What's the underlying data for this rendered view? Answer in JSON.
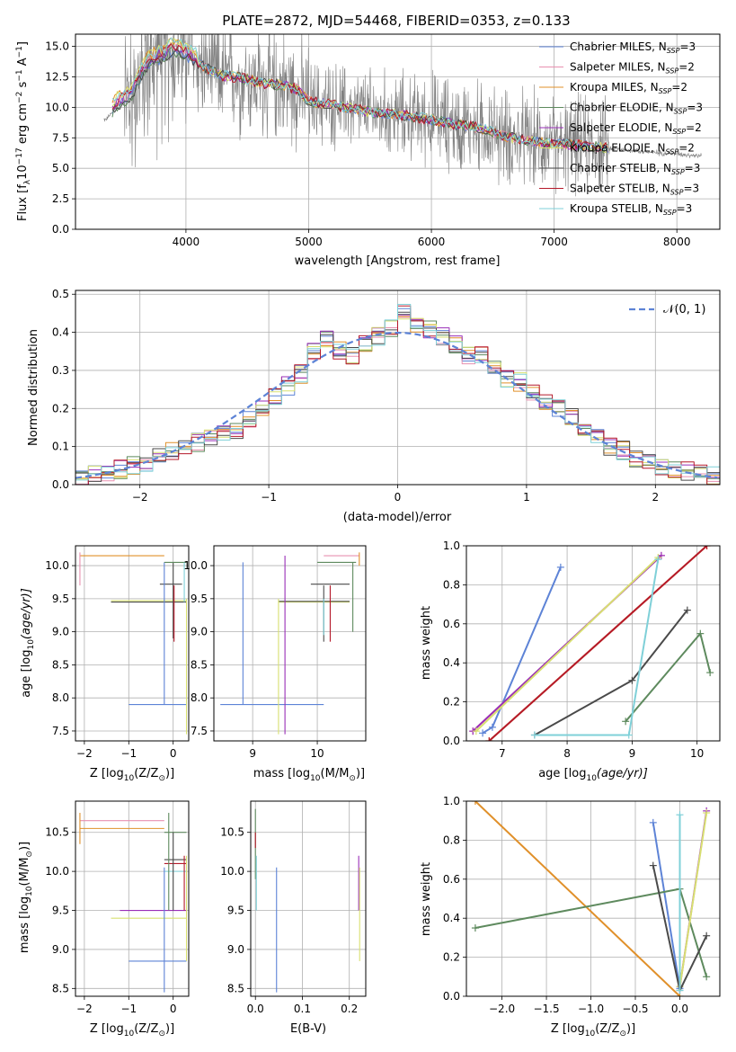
{
  "figure": {
    "title": "PLATE=2872, MJD=54468, FIBERID=0353, z=0.133"
  },
  "colors": {
    "Chabrier MILES": "#5d83d6",
    "Salpeter MILES": "#e890b0",
    "Kroupa MILES": "#e0902a",
    "Chabrier ELODIE": "#5e8a5e",
    "Salpeter ELODIE": "#9a2fb8",
    "Kroupa ELODIE": "#d8e070",
    "Chabrier STELIB": "#4a4a4a",
    "Salpeter STELIB": "#b5192a",
    "Kroupa STELIB": "#7fd0d8",
    "data": "#808080",
    "gauss": "#5d83d6"
  },
  "legend_spectrum": [
    {
      "key": "Chabrier MILES",
      "pre": "Chabrier MILES, N",
      "sub": "SSP",
      "post": "=3"
    },
    {
      "key": "Salpeter MILES",
      "pre": "Salpeter MILES, N",
      "sub": "SSP",
      "post": "=2"
    },
    {
      "key": "Kroupa MILES",
      "pre": "Kroupa MILES, N",
      "sub": "SSP",
      "post": "=2"
    },
    {
      "key": "Chabrier ELODIE",
      "pre": "Chabrier ELODIE, N",
      "sub": "SSP",
      "post": "=3"
    },
    {
      "key": "Salpeter ELODIE",
      "pre": "Salpeter ELODIE, N",
      "sub": "SSP",
      "post": "=2"
    },
    {
      "key": "Kroupa ELODIE",
      "pre": "Kroupa ELODIE, N",
      "sub": "SSP",
      "post": "=2"
    },
    {
      "key": "Chabrier STELIB",
      "pre": "Chabrier STELIB, N",
      "sub": "SSP",
      "post": "=3"
    },
    {
      "key": "Salpeter STELIB",
      "pre": "Salpeter STELIB, N",
      "sub": "SSP",
      "post": "=3"
    },
    {
      "key": "Kroupa STELIB",
      "pre": "Kroupa STELIB, N",
      "sub": "SSP",
      "post": "=3"
    }
  ],
  "chart_data": [
    {
      "id": "spectrum",
      "type": "line",
      "xlabel": "wavelength [Angstrom, rest frame]",
      "ylabel_parts": {
        "pre": "Flux [f",
        "sub": "λ",
        "mid": "10",
        "sup1": "−17",
        "post": " erg cm",
        "sup2": "−2",
        "post2": " s",
        "sup3": "−1",
        "post3": " A",
        "sup4": "−1",
        "end": "]"
      },
      "xlim": [
        3100,
        8350
      ],
      "ylim": [
        0,
        16
      ],
      "xticks": [
        4000,
        5000,
        6000,
        7000,
        8000
      ],
      "yticks": [
        0.0,
        2.5,
        5.0,
        7.5,
        10.0,
        12.5,
        15.0
      ],
      "ytick_labels": [
        "0.0",
        "2.5",
        "5.0",
        "7.5",
        "10.0",
        "12.5",
        "15.0"
      ],
      "continuum": {
        "x": [
          3350,
          3450,
          3550,
          3650,
          3700,
          3800,
          3900,
          4000,
          4100,
          4200,
          4300,
          4400,
          4500,
          4600,
          4700,
          4800,
          4900,
          5000,
          5200,
          5400,
          5600,
          5800,
          6000,
          6200,
          6400,
          6600,
          6800,
          7000,
          7200,
          7400,
          7600,
          7800,
          8000,
          8200
        ],
        "y": [
          9.0,
          10.2,
          10.8,
          12.8,
          13.5,
          14.0,
          14.6,
          14.2,
          13.6,
          13.0,
          12.6,
          12.5,
          12.3,
          12.0,
          11.9,
          11.8,
          11.5,
          10.5,
          10.2,
          9.8,
          9.5,
          9.3,
          9.0,
          8.6,
          8.3,
          7.6,
          7.3,
          7.0,
          6.9,
          6.7,
          6.5,
          6.3,
          6.2,
          6.0
        ]
      }
    },
    {
      "id": "residuals",
      "type": "step",
      "xlabel": "(data-model)/error",
      "ylabel": "Normed distribution",
      "xlim": [
        -2.5,
        2.5
      ],
      "ylim": [
        0,
        0.51
      ],
      "xticks": [
        -2,
        -1,
        0,
        1,
        2
      ],
      "xtick_labels": [
        "−2",
        "−1",
        "0",
        "1",
        "2"
      ],
      "yticks": [
        0.0,
        0.1,
        0.2,
        0.3,
        0.4,
        0.5
      ],
      "ytick_labels": [
        "0.0",
        "0.1",
        "0.2",
        "0.3",
        "0.4",
        "0.5"
      ],
      "legend": "𝒩(0, 1)",
      "bin_width": 0.1,
      "bin_start": -2.5,
      "base_values": [
        0.02,
        0.025,
        0.03,
        0.04,
        0.05,
        0.06,
        0.07,
        0.09,
        0.1,
        0.11,
        0.12,
        0.13,
        0.14,
        0.17,
        0.2,
        0.23,
        0.26,
        0.29,
        0.35,
        0.38,
        0.35,
        0.34,
        0.37,
        0.39,
        0.41,
        0.45,
        0.42,
        0.41,
        0.39,
        0.37,
        0.34,
        0.34,
        0.31,
        0.28,
        0.27,
        0.24,
        0.22,
        0.2,
        0.18,
        0.15,
        0.13,
        0.1,
        0.09,
        0.07,
        0.06,
        0.05,
        0.04,
        0.035,
        0.03,
        0.025
      ]
    },
    {
      "id": "age_vs_Z",
      "type": "errorbar",
      "xlabel_parts": {
        "pre": "Z [log",
        "sub": "10",
        "post": "(Z/Z",
        "sub2": "⊙",
        "end": ")]"
      },
      "ylabel_parts": {
        "pre": "age  [log",
        "sub": "10",
        "post": "(age/yr)]"
      },
      "xlim": [
        -2.2,
        0.35
      ],
      "ylim": [
        7.35,
        10.3
      ],
      "xticks": [
        -2,
        -1,
        0
      ],
      "xtick_labels": [
        "−2",
        "−1",
        "0"
      ],
      "yticks": [
        7.5,
        8.0,
        8.5,
        9.0,
        9.5,
        10.0
      ],
      "ytick_labels": [
        "7.5",
        "8.0",
        "8.5",
        "9.0",
        "9.5",
        "10.0"
      ]
    },
    {
      "id": "age_vs_mass",
      "type": "errorbar",
      "xlabel_parts": {
        "pre": "mass [log",
        "sub": "10",
        "post": "(M/M",
        "sub2": "⊙",
        "end": ")]"
      },
      "xlim": [
        8.4,
        10.75
      ],
      "ylim": [
        7.35,
        10.3
      ],
      "xticks": [
        9,
        10
      ],
      "xtick_labels": [
        "9",
        "10"
      ],
      "yticks": [
        7.5,
        8.0,
        8.5,
        9.0,
        9.5,
        10.0
      ],
      "ytick_labels": [
        "7.5",
        "8.0",
        "8.5",
        "9.0",
        "9.5",
        "10.0"
      ]
    },
    {
      "id": "weight_vs_age",
      "type": "line",
      "xlabel_parts": {
        "pre": "age  [log",
        "sub": "10",
        "post": "(age/yr)]"
      },
      "ylabel": "mass weight",
      "xlim": [
        6.45,
        10.35
      ],
      "ylim": [
        0,
        1.0
      ],
      "xticks": [
        7,
        8,
        9,
        10
      ],
      "xtick_labels": [
        "7",
        "8",
        "9",
        "10"
      ],
      "yticks": [
        0.0,
        0.2,
        0.4,
        0.6,
        0.8,
        1.0
      ],
      "ytick_labels": [
        "0.0",
        "0.2",
        "0.4",
        "0.6",
        "0.8",
        "1.0"
      ],
      "series": [
        {
          "key": "Chabrier MILES",
          "x": [
            7.9,
            6.85,
            6.7
          ],
          "y": [
            0.89,
            0.07,
            0.04
          ]
        },
        {
          "key": "Salpeter MILES",
          "x": [
            6.55,
            9.45
          ],
          "y": [
            0.05,
            0.95
          ]
        },
        {
          "key": "Kroupa MILES",
          "x": [
            6.8,
            10.15
          ],
          "y": [
            0.0,
            1.0
          ]
        },
        {
          "key": "Chabrier ELODIE",
          "x": [
            8.9,
            10.05,
            10.2
          ],
          "y": [
            0.1,
            0.55,
            0.35
          ]
        },
        {
          "key": "Salpeter ELODIE",
          "x": [
            6.55,
            9.45
          ],
          "y": [
            0.05,
            0.95
          ]
        },
        {
          "key": "Kroupa ELODIE",
          "x": [
            6.6,
            9.4
          ],
          "y": [
            0.05,
            0.94
          ]
        },
        {
          "key": "Chabrier STELIB",
          "x": [
            7.5,
            9.0,
            9.85
          ],
          "y": [
            0.03,
            0.31,
            0.67
          ]
        },
        {
          "key": "Salpeter STELIB",
          "x": [
            6.8,
            10.15
          ],
          "y": [
            0.0,
            1.0
          ]
        },
        {
          "key": "Kroupa STELIB",
          "x": [
            7.5,
            8.95,
            9.4
          ],
          "y": [
            0.03,
            0.03,
            0.93
          ]
        }
      ]
    },
    {
      "id": "mass_vs_Z",
      "type": "errorbar",
      "xlabel_parts": {
        "pre": "Z [log",
        "sub": "10",
        "post": "(Z/Z",
        "sub2": "⊙",
        "end": ")]"
      },
      "ylabel_parts": {
        "pre": "mass [log",
        "sub": "10",
        "post": "(M/M",
        "sub2": "⊙",
        "end": ")]"
      },
      "xlim": [
        -2.2,
        0.35
      ],
      "ylim": [
        8.4,
        10.9
      ],
      "xticks": [
        -2,
        -1,
        0
      ],
      "xtick_labels": [
        "−2",
        "−1",
        "0"
      ],
      "yticks": [
        8.5,
        9.0,
        9.5,
        10.0,
        10.5
      ],
      "ytick_labels": [
        "8.5",
        "9.0",
        "9.5",
        "10.0",
        "10.5"
      ]
    },
    {
      "id": "mass_vs_EBV",
      "type": "errorbar",
      "xlabel": "E(B-V)",
      "xlim": [
        -0.01,
        0.235
      ],
      "ylim": [
        8.4,
        10.9
      ],
      "xticks": [
        0.0,
        0.1,
        0.2
      ],
      "xtick_labels": [
        "0.0",
        "0.1",
        "0.2"
      ],
      "yticks": [
        8.5,
        9.0,
        9.5,
        10.0,
        10.5
      ],
      "ytick_labels": [
        "8.5",
        "9.0",
        "9.5",
        "10.0",
        "10.5"
      ]
    },
    {
      "id": "weight_vs_Z",
      "type": "line",
      "xlabel_parts": {
        "pre": "Z [log",
        "sub": "10",
        "post": "(Z/Z",
        "sub2": "⊙",
        "end": ")]"
      },
      "ylabel": "mass weight",
      "xlim": [
        -2.4,
        0.45
      ],
      "ylim": [
        0,
        1.0
      ],
      "xticks": [
        -2.0,
        -1.5,
        -1.0,
        -0.5,
        0.0
      ],
      "xtick_labels": [
        "−2.0",
        "−1.5",
        "−1.0",
        "−0.5",
        "0.0"
      ],
      "yticks": [
        0.0,
        0.2,
        0.4,
        0.6,
        0.8,
        1.0
      ],
      "ytick_labels": [
        "0.0",
        "0.2",
        "0.4",
        "0.6",
        "0.8",
        "1.0"
      ],
      "series": [
        {
          "key": "Chabrier MILES",
          "x": [
            -0.3,
            0.0
          ],
          "y": [
            0.89,
            0.04
          ]
        },
        {
          "key": "Kroupa MILES",
          "x": [
            -2.3,
            0.0
          ],
          "y": [
            1.0,
            0.0
          ]
        },
        {
          "key": "Chabrier ELODIE",
          "x": [
            -2.3,
            0.0,
            0.3
          ],
          "y": [
            0.35,
            0.55,
            0.1
          ]
        },
        {
          "key": "Salpeter ELODIE",
          "x": [
            0.0,
            0.3
          ],
          "y": [
            0.05,
            0.95
          ]
        },
        {
          "key": "Kroupa ELODIE",
          "x": [
            0.0,
            0.3
          ],
          "y": [
            0.05,
            0.94
          ]
        },
        {
          "key": "Chabrier STELIB",
          "x": [
            -0.3,
            0.0,
            0.3
          ],
          "y": [
            0.67,
            0.03,
            0.31
          ]
        },
        {
          "key": "Kroupa STELIB",
          "x": [
            0.0,
            0.0
          ],
          "y": [
            0.03,
            0.93
          ]
        }
      ]
    }
  ]
}
